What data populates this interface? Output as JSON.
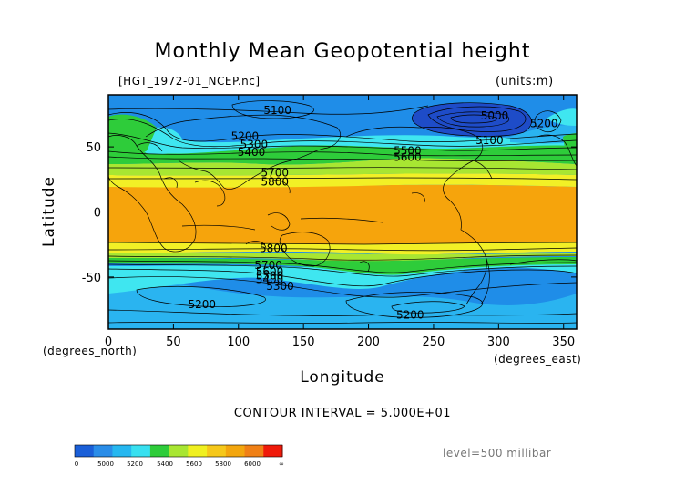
{
  "chart_data": {
    "type": "contour",
    "title": "Monthly Mean Geopotential height",
    "file_label": "[HGT_1972-01_NCEP.nc]",
    "units_label": "(units:m)",
    "xlabel": "Longitude",
    "ylabel": "Latitude",
    "x_unit_label": "(degrees_east)",
    "y_unit_label": "(degrees_north)",
    "xlim": [
      0,
      360
    ],
    "ylim": [
      -90,
      90
    ],
    "xticks": [
      "0",
      "50",
      "100",
      "150",
      "200",
      "250",
      "300",
      "350"
    ],
    "yticks": [
      "50",
      "0",
      "-50"
    ],
    "contour_interval_text": "CONTOUR INTERVAL = 5.000E+01",
    "level_text": "level=500 millibar",
    "contour_labels": [
      {
        "text": "5100",
        "lon": 130,
        "lat": 78
      },
      {
        "text": "5200",
        "lon": 105,
        "lat": 58
      },
      {
        "text": "5300",
        "lon": 112,
        "lat": 52
      },
      {
        "text": "5400",
        "lon": 110,
        "lat": 46
      },
      {
        "text": "5700",
        "lon": 128,
        "lat": 30
      },
      {
        "text": "5800",
        "lon": 128,
        "lat": 23
      },
      {
        "text": "5500",
        "lon": 230,
        "lat": 47
      },
      {
        "text": "5600",
        "lon": 230,
        "lat": 42
      },
      {
        "text": "5000",
        "lon": 297,
        "lat": 74
      },
      {
        "text": "5100",
        "lon": 293,
        "lat": 55
      },
      {
        "text": "5200",
        "lon": 335,
        "lat": 68
      },
      {
        "text": "5800",
        "lon": 127,
        "lat": -28
      },
      {
        "text": "5700",
        "lon": 123,
        "lat": -41
      },
      {
        "text": "5600",
        "lon": 124,
        "lat": -46
      },
      {
        "text": "5500",
        "lon": 124,
        "lat": -49
      },
      {
        "text": "5400",
        "lon": 124,
        "lat": -52
      },
      {
        "text": "5300",
        "lon": 132,
        "lat": -57
      },
      {
        "text": "5200",
        "lon": 72,
        "lat": -71
      },
      {
        "text": "5200",
        "lon": 232,
        "lat": -79
      }
    ],
    "colorbar": {
      "tick_labels": [
        "0",
        "5000",
        "5200",
        "5400",
        "5600",
        "5800",
        "6000",
        "∞"
      ],
      "colors": [
        "#1a5fd8",
        "#2a8de8",
        "#26b7f0",
        "#38e0f0",
        "#2ecc3a",
        "#a8e632",
        "#f0f020",
        "#f6c81a",
        "#f3a60e",
        "#f08016",
        "#ef1a0a"
      ]
    },
    "fill_colors": {
      "deep_blue": "#1e4cc8",
      "blue": "#1f8de8",
      "sky": "#2ab4f0",
      "cyan": "#3fe6f0",
      "green": "#2ecc3a",
      "lime": "#a8e632",
      "yellow": "#f2f026",
      "gold": "#f6c81a",
      "orange": "#f6a40c"
    }
  }
}
